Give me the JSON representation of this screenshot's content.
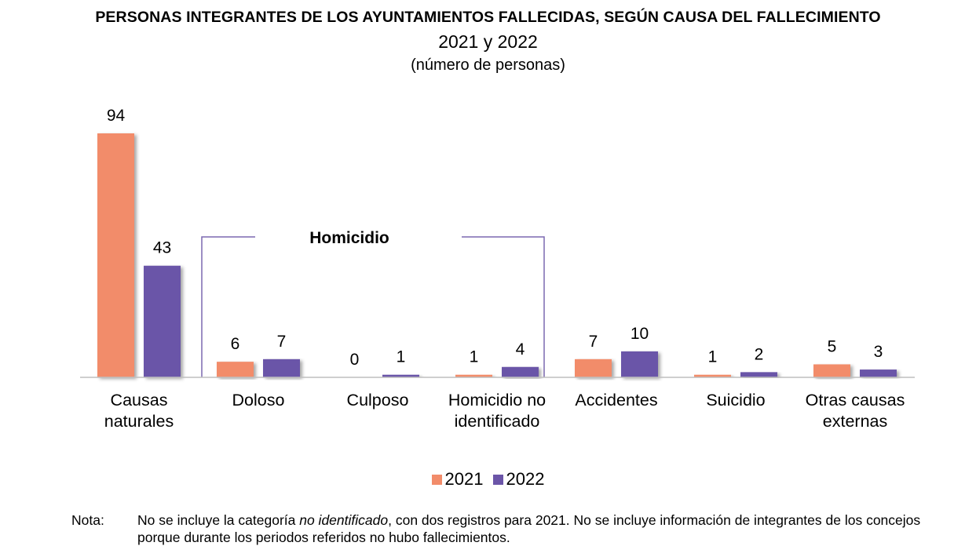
{
  "chart_data": {
    "type": "bar",
    "title": "PERSONAS INTEGRANTES DE LOS AYUNTAMIENTOS FALLECIDAS, SEGÚN CAUSA DEL FALLECIMIENTO",
    "subtitle": "2021 y 2022",
    "units": "(número de personas)",
    "categories": [
      [
        "Causas",
        "naturales"
      ],
      [
        "Doloso"
      ],
      [
        "Culposo"
      ],
      [
        "Homicidio no",
        "identificado"
      ],
      [
        "Accidentes"
      ],
      [
        "Suicidio"
      ],
      [
        "Otras causas",
        "externas"
      ]
    ],
    "series": [
      {
        "name": "2021",
        "color": "#F28C6A",
        "values": [
          94,
          6,
          0,
          1,
          7,
          1,
          5
        ]
      },
      {
        "name": "2022",
        "color": "#6B55A8",
        "values": [
          43,
          7,
          1,
          4,
          10,
          2,
          3
        ]
      }
    ],
    "ylim": [
      0,
      94
    ],
    "grid": false,
    "legend_position": "bottom-center",
    "group_annotation": {
      "label": "Homicidio",
      "first_category": 1,
      "last_category": 3,
      "color": "#7B68B0"
    }
  },
  "note": {
    "label": "Nota:",
    "text_before_italic": "No se incluye la categoría ",
    "text_italic": "no identificado",
    "text_after_italic": ", con dos registros para 2021. No se incluye información de integrantes de los concejos porque durante los periodos referidos no hubo fallecimientos."
  }
}
